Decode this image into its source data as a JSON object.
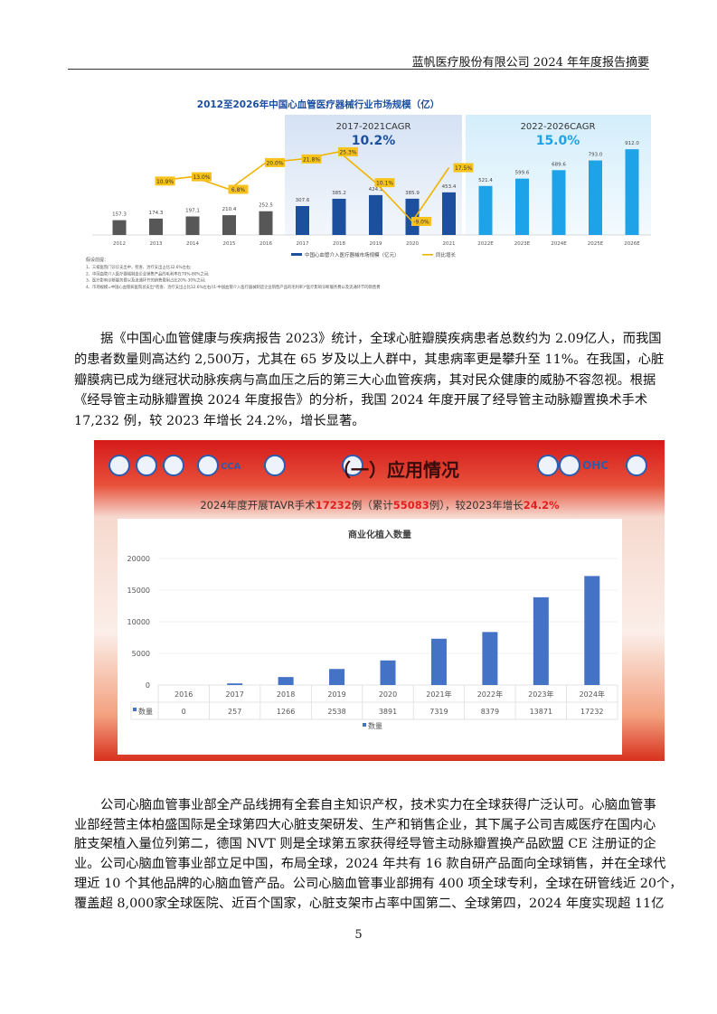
{
  "header": {
    "title": "蓝帆医疗股份有限公司 2024 年年度报告摘要"
  },
  "paragraph1": [
    "据《中国心血管健康与疾病报告 2023》统计，全球心脏瓣膜疾病患者总数约为 2.09亿人，而我国",
    "的患者数量则高达约 2,500万，尤其在 65 岁及以上人群中，其患病率更是攀升至 11%。在我国，心脏",
    "瓣膜病已成为继冠状动脉疾病与高血压之后的第三大心血管疾病，其对民众健康的威胁不容忽视。根据",
    "《经导管主动脉瓣置换 2024 年度报告》的分析，我国 2024 年度开展了经导管主动脉瓣置换术手术",
    "17,232 例，较 2023 年增长 24.2%，增长显著。"
  ],
  "paragraph2": [
    "公司心脑血管事业部全产品线拥有全套自主知识产权，技术实力在全球获得广泛认可。心脑血管事",
    "业部经营主体柏盛国际是全球第四大心脏支架研发、生产和销售企业，其下属子公司吉威医疗在国内心",
    "脏支架植入量位列第二，德国 NVT 则是全球第五家获得经导管主动脉瓣置换产品欧盟 CE 注册证的企",
    "业。公司心脑血管事业部立足中国，布局全球，2024 年共有 16 款自研产品面向全球销售，并在全球代",
    "理近 10 个其他品牌的心脑血管产品。公司心脑血管事业部拥有 400 项全球专利，全球在研管线近 20个，",
    "覆盖超 8,000家全球医院、近百个国家，心脏支架市占率中国第二、全球第四，2024 年度实现超 11亿"
  ],
  "page_number": "5",
  "chart_data": [
    {
      "type": "bar",
      "title": "2012至2026年中国心血管医疗器械行业市场规模（亿）",
      "categories": [
        "2012",
        "2013",
        "2014",
        "2015",
        "2016",
        "2017",
        "2018",
        "2019",
        "2020",
        "2021",
        "2022E",
        "2023E",
        "2024E",
        "2025E",
        "2026E"
      ],
      "series": [
        {
          "name": "中国心血管介入医疗器械市场规模（亿元）",
          "type": "bar",
          "values": [
            157.3,
            174.3,
            197.1,
            210.4,
            252.5,
            307.6,
            385.2,
            424.1,
            385.9,
            453.4,
            521.4,
            599.6,
            689.6,
            793.0,
            912.0
          ],
          "value_labels": [
            "157.3",
            "174.3",
            "197.1",
            "210.4",
            "252.5",
            "307.6",
            "385.2",
            "424.1",
            "385.9",
            "453.4",
            "521.4",
            "599.6",
            "689.6",
            "793.0",
            "912.0"
          ]
        },
        {
          "name": "同比增长",
          "type": "line",
          "values": [
            null,
            10.9,
            13.0,
            6.8,
            20.0,
            21.8,
            25.3,
            10.1,
            -9.0,
            17.5,
            null,
            null,
            null,
            null,
            null
          ],
          "value_labels": [
            "",
            "10.9%",
            "13.0%",
            "6.8%",
            "20.0%",
            "21.8%",
            "25.3%",
            "10.1%",
            "-9.0%",
            "17.5%",
            "",
            "",
            "",
            "",
            ""
          ]
        }
      ],
      "annotations": [
        {
          "label": "2017-2021CAGR",
          "value": "10.2%"
        },
        {
          "label": "2022-2026CAGR",
          "value": "15.0%"
        }
      ],
      "colors": {
        "history": "#575757",
        "period1": "#1d4f9f",
        "forecast": "#1ea3e8",
        "line": "#f0b400"
      },
      "legend_position": "bottom",
      "notes_title": "假设前提：",
      "notes": [
        "1、三级医院门诊诊支出中，检查、治疗支出占比32.6%左右;",
        "2、中国血管介入医疗器械制造企业销售产品的毛利率在70%-80%之间;",
        "3、医疗影响诊断服务费以及流通环节的销售费用占比20%-30%之间;",
        "4、市场规模=中国心血管病医院总支出*检查、治疗支出占比32.6%左右/(1-中国血管介入医疗器械制造企业销售产品的毛利率)*医疗影响诊断服务费以及流通环节的销售费"
      ]
    },
    {
      "type": "bar",
      "banner_title": "（一）应用情况",
      "subtitle_segments": [
        {
          "text": "2024年度开展TAVR手术",
          "highlight": false
        },
        {
          "text": "17232",
          "highlight": true
        },
        {
          "text": "例（累计",
          "highlight": false
        },
        {
          "text": "55083",
          "highlight": true
        },
        {
          "text": "例），较2023年增长",
          "highlight": false
        },
        {
          "text": "24.2%",
          "highlight": true
        }
      ],
      "title": "商业化植入数量",
      "categories": [
        "2016",
        "2017",
        "2018",
        "2019",
        "2020",
        "2021年",
        "2022年",
        "2023年",
        "2024年"
      ],
      "series": [
        {
          "name": "数量",
          "values": [
            0,
            257,
            1266,
            2538,
            3891,
            7319,
            8379,
            13871,
            17232
          ]
        }
      ],
      "y_ticks": [
        "0",
        "5000",
        "10000",
        "15000",
        "20000"
      ],
      "ylim": [
        0,
        20000
      ],
      "data_table": true,
      "legend_position": "bottom",
      "logo_text": [
        "CCA",
        "OHC"
      ],
      "colors": {
        "bar": "#4472c4",
        "highlight": "#e02020"
      }
    }
  ]
}
